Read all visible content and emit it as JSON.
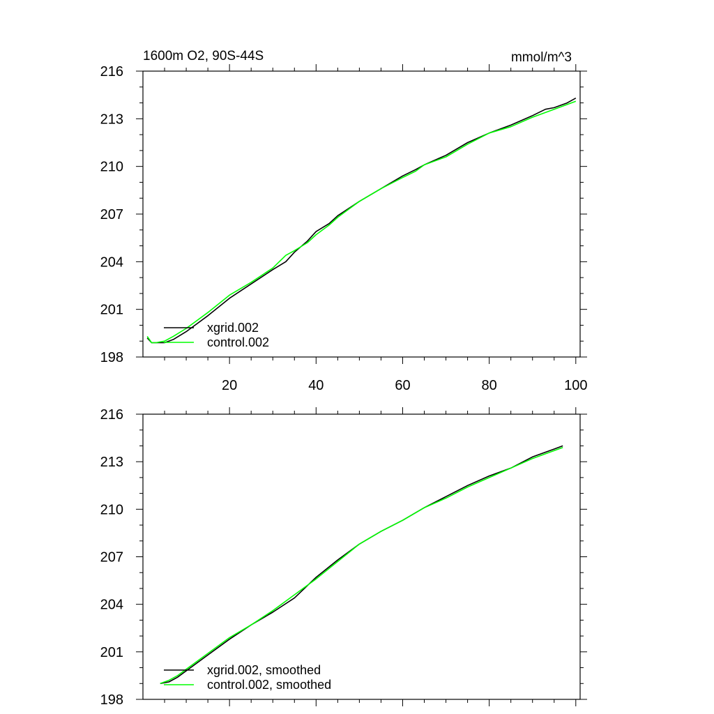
{
  "chart_data": [
    {
      "type": "line",
      "title": "1600m O2, 90S-44S",
      "units": "mmol/m^3",
      "xlabel": "",
      "ylabel": "",
      "xlim": [
        0,
        101
      ],
      "ylim": [
        198,
        216
      ],
      "y_ticks": [
        198,
        201,
        204,
        207,
        210,
        213,
        216
      ],
      "x_ticks": [
        20,
        40,
        60,
        80,
        100
      ],
      "x_tick_labels_shown": true,
      "legend_position": "bottom-left",
      "series": [
        {
          "name": "xgrid.002",
          "color": "#000000",
          "x": [
            1,
            2,
            3,
            5,
            7,
            10,
            15,
            20,
            25,
            30,
            33,
            35,
            38,
            40,
            43,
            45,
            50,
            55,
            60,
            63,
            65,
            70,
            75,
            80,
            85,
            90,
            93,
            95,
            98,
            100
          ],
          "y": [
            199.2,
            198.9,
            198.9,
            198.9,
            199.1,
            199.6,
            200.6,
            201.7,
            202.6,
            203.5,
            204.0,
            204.6,
            205.3,
            205.9,
            206.4,
            206.9,
            207.8,
            208.6,
            209.4,
            209.8,
            210.1,
            210.7,
            211.5,
            212.1,
            212.6,
            213.2,
            213.6,
            213.7,
            214.0,
            214.3
          ]
        },
        {
          "name": "control.002",
          "color": "#00ff00",
          "x": [
            1,
            2,
            3,
            5,
            7,
            10,
            15,
            20,
            25,
            30,
            33,
            35,
            38,
            40,
            43,
            45,
            50,
            55,
            60,
            63,
            65,
            70,
            75,
            80,
            85,
            90,
            95,
            100
          ],
          "y": [
            199.3,
            198.9,
            198.9,
            199.0,
            199.3,
            199.8,
            200.8,
            201.9,
            202.7,
            203.6,
            204.4,
            204.7,
            205.2,
            205.7,
            206.3,
            206.8,
            207.8,
            208.6,
            209.3,
            209.7,
            210.1,
            210.6,
            211.4,
            212.1,
            212.5,
            213.1,
            213.6,
            214.1
          ]
        }
      ]
    },
    {
      "type": "line",
      "title": "",
      "xlabel": "",
      "ylabel": "",
      "xlim": [
        0,
        101
      ],
      "ylim": [
        198,
        216
      ],
      "y_ticks": [
        198,
        201,
        204,
        207,
        210,
        213,
        216
      ],
      "x_ticks": [
        20,
        40,
        60,
        80,
        100
      ],
      "x_tick_labels_shown": false,
      "legend_position": "bottom-left",
      "series": [
        {
          "name": "xgrid.002, smoothed",
          "color": "#000000",
          "x": [
            4,
            6,
            8,
            10,
            15,
            20,
            25,
            30,
            35,
            40,
            45,
            50,
            55,
            60,
            65,
            70,
            75,
            80,
            85,
            90,
            95,
            97
          ],
          "y": [
            199.0,
            199.1,
            199.4,
            199.8,
            200.8,
            201.8,
            202.7,
            203.5,
            204.4,
            205.7,
            206.8,
            207.8,
            208.6,
            209.3,
            210.1,
            210.8,
            211.5,
            212.1,
            212.6,
            213.3,
            213.8,
            214.0
          ]
        },
        {
          "name": "control.002, smoothed",
          "color": "#00ff00",
          "x": [
            4,
            6,
            8,
            10,
            15,
            20,
            25,
            30,
            35,
            40,
            45,
            50,
            55,
            60,
            65,
            70,
            75,
            80,
            85,
            90,
            95,
            97
          ],
          "y": [
            199.0,
            199.2,
            199.5,
            199.9,
            200.9,
            201.9,
            202.7,
            203.6,
            204.6,
            205.6,
            206.7,
            207.8,
            208.6,
            209.3,
            210.1,
            210.7,
            211.4,
            212.0,
            212.6,
            213.2,
            213.7,
            213.9
          ]
        }
      ]
    }
  ]
}
